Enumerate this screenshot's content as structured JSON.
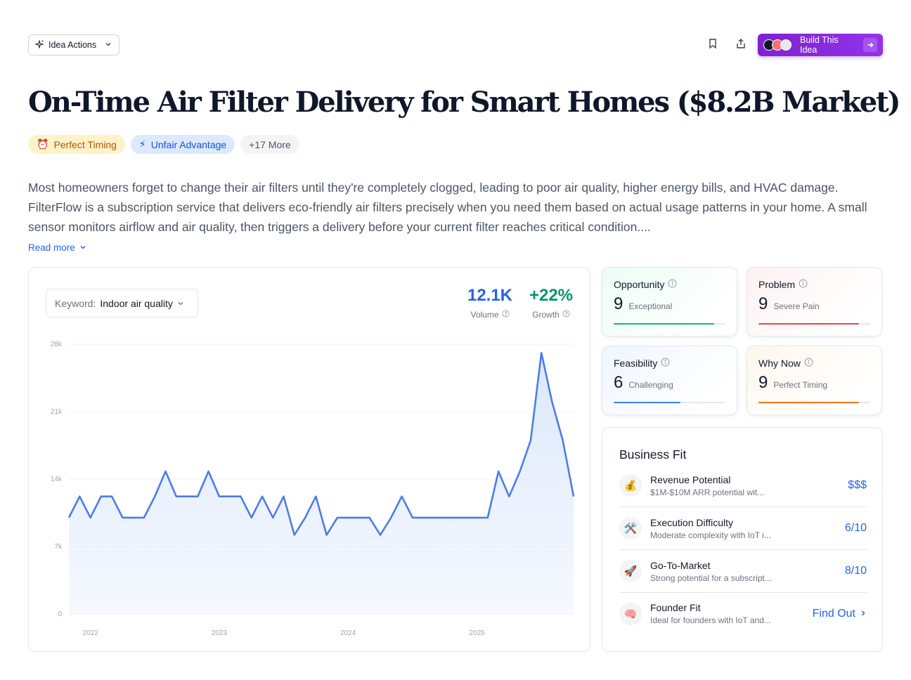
{
  "header": {
    "idea_actions_label": "Idea Actions",
    "build_label": "Build This Idea"
  },
  "title": "On-Time Air Filter Delivery for Smart Homes ($8.2B Market)",
  "tags": [
    {
      "icon": "⏰",
      "label": "Perfect Timing"
    },
    {
      "icon": "⚡",
      "label": "Unfair Advantage"
    },
    {
      "label": "+17 More"
    }
  ],
  "description": "Most homeowners forget to change their air filters until they're completely clogged, leading to poor air quality, higher energy bills, and HVAC damage. FilterFlow is a subscription service that delivers eco-friendly air filters precisely when you need them based on actual usage patterns in your home. A small sensor monitors airflow and air quality, then triggers a delivery before your current filter reaches critical condition....",
  "read_more_label": "Read more",
  "keyword": {
    "label": "Keyword:",
    "value": "Indoor air quality"
  },
  "metrics": {
    "volume": {
      "value": "12.1K",
      "label": "Volume",
      "color": "#2563eb"
    },
    "growth": {
      "value": "+22%",
      "label": "Growth",
      "color": "#059669"
    }
  },
  "chart_data": {
    "type": "area",
    "y_ticks": [
      "28k",
      "21k",
      "14k",
      "7k",
      "0"
    ],
    "ylim": [
      0,
      28000
    ],
    "x_ticks": [
      "2022",
      "2023",
      "2024",
      "2025"
    ],
    "x_tick_positions": [
      2,
      14,
      26,
      38
    ],
    "values": [
      10000,
      12200,
      10000,
      12200,
      12200,
      10000,
      10000,
      10000,
      12200,
      14800,
      12200,
      12200,
      12200,
      14800,
      12200,
      12200,
      12200,
      10000,
      12200,
      10000,
      12200,
      8200,
      10000,
      12200,
      8200,
      10000,
      10000,
      10000,
      10000,
      8200,
      10000,
      12200,
      10000,
      10000,
      10000,
      10000,
      10000,
      10000,
      10000,
      10000,
      14800,
      12200,
      14800,
      18000,
      27100,
      22000,
      18000,
      12200
    ],
    "line_color": "#4f7be8",
    "fill_color": "#dbe8fb",
    "grid": true
  },
  "scores": [
    {
      "label": "Opportunity",
      "value": "9",
      "sub": "Exceptional",
      "fraction": 0.9,
      "color": "#10b981",
      "tint": "#ecfdf5"
    },
    {
      "label": "Problem",
      "value": "9",
      "sub": "Severe Pain",
      "fraction": 0.9,
      "color": "#ef4444",
      "tint": "#fef2f2"
    },
    {
      "label": "Feasibility",
      "value": "6",
      "sub": "Challenging",
      "fraction": 0.6,
      "color": "#3b82f6",
      "tint": "#eff6ff"
    },
    {
      "label": "Why Now",
      "value": "9",
      "sub": "Perfect Timing",
      "fraction": 0.9,
      "color": "#f97316",
      "tint": "#fff7ed"
    }
  ],
  "business_fit": {
    "title": "Business Fit",
    "items": [
      {
        "icon": "💰",
        "name": "Revenue Potential",
        "desc": "$1M-$10M ARR potential wit...",
        "value": "$$$"
      },
      {
        "icon": "🛠️",
        "name": "Execution Difficulty",
        "desc": "Moderate complexity with IoT i...",
        "value": "6/10"
      },
      {
        "icon": "🚀",
        "name": "Go-To-Market",
        "desc": "Strong potential for a subscript...",
        "value": "8/10"
      },
      {
        "icon": "🧠",
        "name": "Founder Fit",
        "desc": "Ideal for founders with IoT and...",
        "value": "Find Out"
      }
    ]
  }
}
